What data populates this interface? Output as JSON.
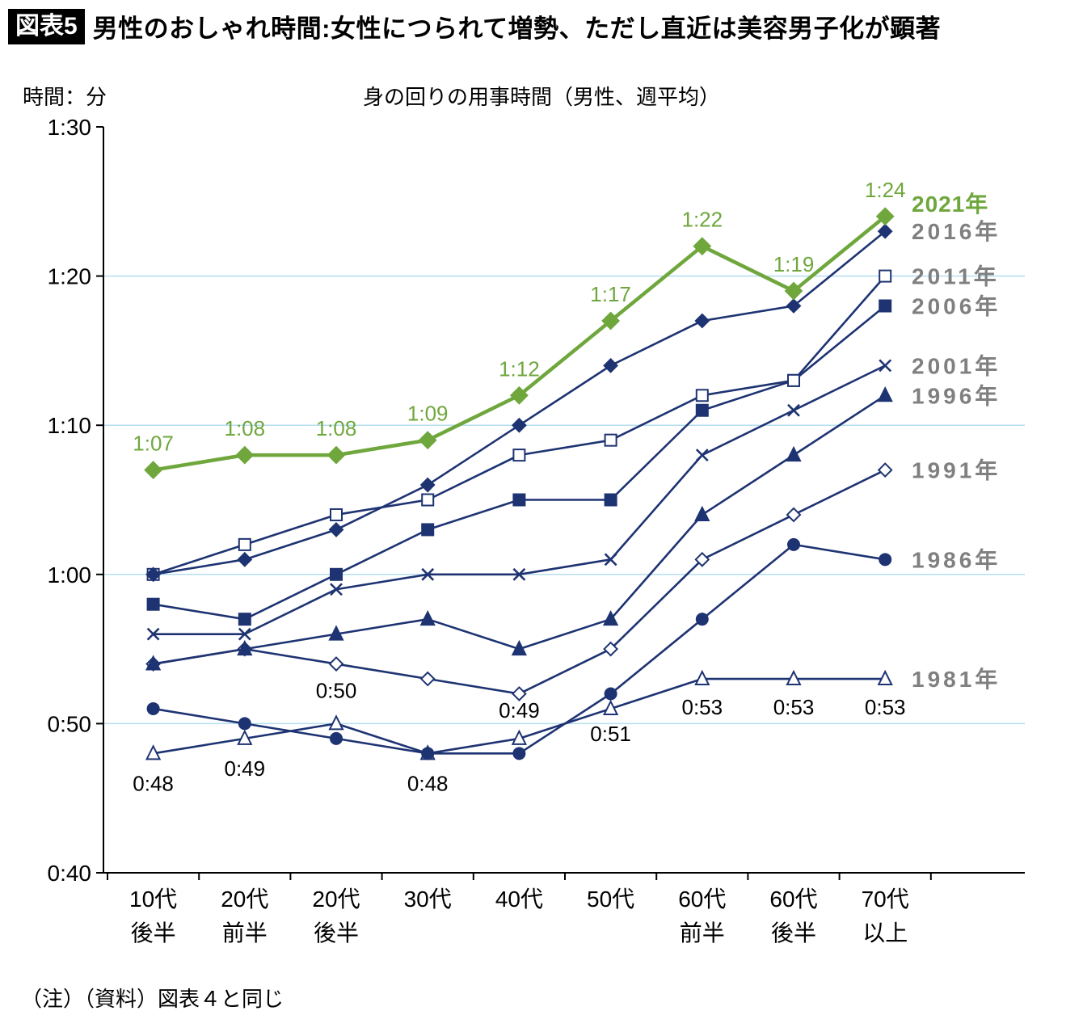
{
  "header": {
    "badge": "図表5",
    "title": "男性のおしゃれ時間:女性につられて増勢、ただし直近は美容男子化が顕著"
  },
  "footnote": "（注）（資料）図表４と同じ",
  "chart_data": {
    "type": "line",
    "title": "身の回りの用事時間（男性、週平均）",
    "y_unit_label": "時間：分",
    "legend_position": "right-of-line-ends",
    "grid": "horizontal-only",
    "colors": {
      "navy": "#1e3372",
      "green": "#6fa73d",
      "grid": "#b5def0",
      "legend_gray": "#808080",
      "axis": "#000000"
    },
    "x_categories": [
      [
        "10代",
        "後半"
      ],
      [
        "20代",
        "前半"
      ],
      [
        "20代",
        "後半"
      ],
      [
        "30代"
      ],
      [
        "40代"
      ],
      [
        "50代"
      ],
      [
        "60代",
        "前半"
      ],
      [
        "60代",
        "後半"
      ],
      [
        "70代",
        "以上"
      ]
    ],
    "y_axis": {
      "min": 40,
      "max": 90,
      "gridlines": [
        80,
        70,
        60,
        50
      ],
      "ticks": [
        {
          "v": 90,
          "label": "1:30"
        },
        {
          "v": 80,
          "label": "1:20"
        },
        {
          "v": 70,
          "label": "1:10"
        },
        {
          "v": 60,
          "label": "1:00"
        },
        {
          "v": 50,
          "label": "0:50"
        },
        {
          "v": 40,
          "label": "0:40"
        }
      ]
    },
    "series": [
      {
        "name": "2021年",
        "color_key": "green",
        "legend_color_key": "green",
        "marker": "diamond",
        "line_width": 4.5,
        "legend_dy": -16,
        "values": [
          67,
          68,
          68,
          69,
          72,
          77,
          82,
          79,
          84
        ],
        "point_labels": [
          "1:07",
          "1:08",
          "1:08",
          "1:09",
          "1:12",
          "1:17",
          "1:22",
          "1:19",
          "1:24"
        ],
        "label_color_key": "green"
      },
      {
        "name": "2016年",
        "marker": "diamond",
        "values": [
          60,
          61,
          63,
          66,
          70,
          74,
          77,
          78,
          83
        ]
      },
      {
        "name": "2011年",
        "marker": "square-open",
        "values": [
          60,
          62,
          64,
          65,
          68,
          69,
          72,
          73,
          80
        ]
      },
      {
        "name": "2006年",
        "marker": "square",
        "values": [
          58,
          57,
          60,
          63,
          65,
          65,
          71,
          73,
          78
        ]
      },
      {
        "name": "2001年",
        "marker": "x",
        "values": [
          56,
          56,
          59,
          60,
          60,
          61,
          68,
          71,
          74
        ]
      },
      {
        "name": "1996年",
        "marker": "triangle",
        "values": [
          54,
          55,
          56,
          57,
          55,
          57,
          64,
          68,
          72
        ]
      },
      {
        "name": "1991年",
        "marker": "diamond-open",
        "values": [
          54,
          55,
          54,
          53,
          52,
          55,
          61,
          64,
          67
        ]
      },
      {
        "name": "1986年",
        "marker": "circle",
        "values": [
          51,
          50,
          49,
          48,
          48,
          52,
          57,
          62,
          61
        ]
      },
      {
        "name": "1981年",
        "marker": "triangle-open",
        "values": [
          48,
          49,
          50,
          48,
          49,
          51,
          53,
          53,
          53
        ],
        "point_labels": [
          "0:48",
          "0:49",
          "0:50",
          "0:48",
          "0:49",
          "0:51",
          "0:53",
          "0:53",
          "0:53"
        ],
        "label_dy": [
          46,
          46,
          -32,
          46,
          -26,
          40,
          44,
          44,
          44
        ],
        "label_color_key": "black"
      }
    ]
  }
}
